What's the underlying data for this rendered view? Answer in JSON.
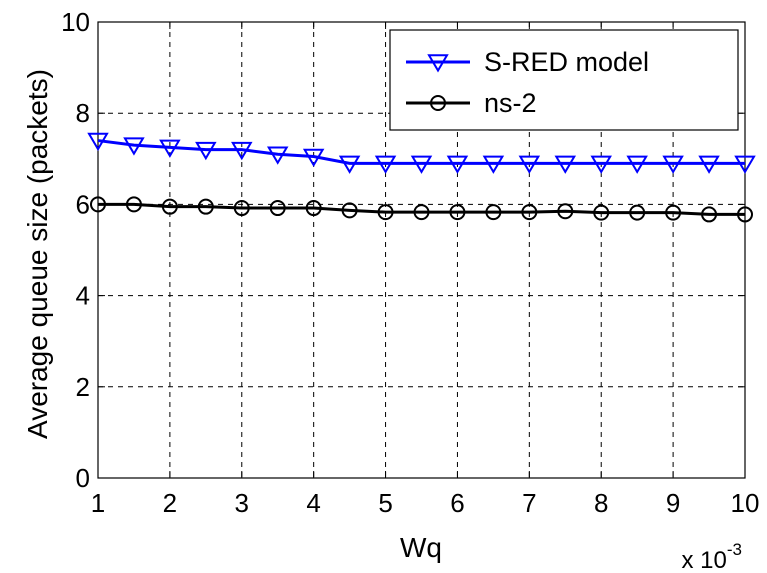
{
  "chart_data": {
    "type": "line",
    "xlabel": "Wq",
    "ylabel": "Average queue size (packets)",
    "x_multiplier_base": "x 10",
    "x_multiplier_exp": "-3",
    "xlim": [
      1,
      10
    ],
    "ylim": [
      0,
      10
    ],
    "x_ticks": [
      "1",
      "2",
      "3",
      "4",
      "5",
      "6",
      "7",
      "8",
      "9",
      "10"
    ],
    "y_ticks": [
      "0",
      "2",
      "4",
      "6",
      "8",
      "10"
    ],
    "grid": true,
    "legend_position": "top-right",
    "x": [
      1,
      1.5,
      2,
      2.5,
      3,
      3.5,
      4,
      4.5,
      5,
      5.5,
      6,
      6.5,
      7,
      7.5,
      8,
      8.5,
      9,
      9.5,
      10
    ],
    "series": [
      {
        "name": "S-RED model",
        "color": "#0000ff",
        "marker": "triangle-down",
        "values": [
          7.4,
          7.3,
          7.25,
          7.2,
          7.2,
          7.1,
          7.05,
          6.9,
          6.9,
          6.9,
          6.9,
          6.9,
          6.9,
          6.9,
          6.9,
          6.9,
          6.9,
          6.9,
          6.9
        ]
      },
      {
        "name": "ns-2",
        "color": "#000000",
        "marker": "circle",
        "values": [
          6.0,
          6.0,
          5.95,
          5.95,
          5.92,
          5.92,
          5.92,
          5.87,
          5.83,
          5.83,
          5.83,
          5.83,
          5.83,
          5.85,
          5.82,
          5.82,
          5.82,
          5.78,
          5.78
        ]
      }
    ]
  }
}
